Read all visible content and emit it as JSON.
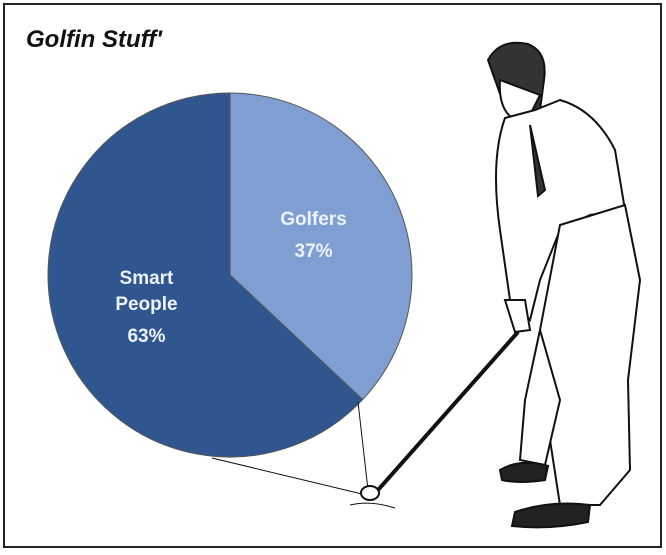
{
  "chart_data": {
    "type": "pie",
    "title": "Golfin Stuff'",
    "categories": [
      "Golfers",
      "Smart People"
    ],
    "values": [
      37,
      63
    ],
    "value_labels": [
      "37%",
      "63%"
    ],
    "colors": [
      "#7f9fd2",
      "#2f568f"
    ]
  }
}
